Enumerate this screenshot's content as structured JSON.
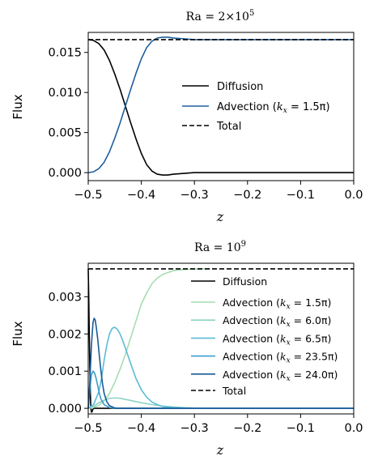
{
  "chart_data": [
    {
      "type": "line",
      "title": "Ra = 2×10⁵",
      "xlabel": "z",
      "ylabel": "Flux",
      "xlim": [
        -0.5,
        0.0
      ],
      "ylim": [
        -0.001,
        0.0175
      ],
      "xticks": [
        "−0.5",
        "−0.4",
        "−0.3",
        "−0.2",
        "−0.1",
        "0.0"
      ],
      "yticks": [
        "0.000",
        "0.005",
        "0.010",
        "0.015"
      ],
      "legend_position": "center-right",
      "series": [
        {
          "name": "Diffusion",
          "color": "#000000",
          "dash": "solid",
          "x": [
            -0.5,
            -0.49,
            -0.48,
            -0.47,
            -0.46,
            -0.45,
            -0.44,
            -0.43,
            -0.42,
            -0.41,
            -0.4,
            -0.39,
            -0.38,
            -0.37,
            -0.36,
            -0.35,
            -0.34,
            -0.32,
            -0.3,
            -0.25,
            -0.2,
            -0.1,
            0.0
          ],
          "y": [
            0.0166,
            0.0165,
            0.0161,
            0.0153,
            0.014,
            0.0123,
            0.0104,
            0.0083,
            0.0062,
            0.0042,
            0.0024,
            0.001,
            0.0002,
            -0.0002,
            -0.0003,
            -0.0003,
            -0.0002,
            -0.0001,
            0.0,
            0.0,
            0.0,
            0.0,
            0.0
          ]
        },
        {
          "name": "Advection (k_x = 1.5π)",
          "color": "#1f5f9e",
          "dash": "solid",
          "x": [
            -0.5,
            -0.49,
            -0.48,
            -0.47,
            -0.46,
            -0.45,
            -0.44,
            -0.43,
            -0.42,
            -0.41,
            -0.4,
            -0.39,
            -0.38,
            -0.37,
            -0.36,
            -0.35,
            -0.34,
            -0.32,
            -0.3,
            -0.25,
            -0.2,
            -0.1,
            0.0
          ],
          "y": [
            0.0,
            0.0001,
            0.0005,
            0.0013,
            0.0026,
            0.0043,
            0.0062,
            0.0083,
            0.0104,
            0.0124,
            0.0142,
            0.0156,
            0.0164,
            0.0168,
            0.0169,
            0.0169,
            0.0168,
            0.0167,
            0.0166,
            0.0166,
            0.0166,
            0.0166,
            0.0166
          ]
        },
        {
          "name": "Total",
          "color": "#000000",
          "dash": "dashed",
          "x": [
            -0.5,
            0.0
          ],
          "y": [
            0.0166,
            0.0166
          ]
        }
      ],
      "legend_labels": {
        "diffusion": "Diffusion",
        "advection_prefix": "Advection (",
        "k_symbol": "k",
        "k_sub": "x",
        "advection_suffix": " = 1.5π)",
        "total": "Total"
      }
    },
    {
      "type": "line",
      "title": "Ra = 10⁹",
      "xlabel": "z",
      "ylabel": "Flux",
      "xlim": [
        -0.5,
        0.0
      ],
      "ylim": [
        -0.00015,
        0.0039
      ],
      "xticks": [
        "−0.5",
        "−0.4",
        "−0.3",
        "−0.2",
        "−0.1",
        "0.0"
      ],
      "yticks": [
        "0.000",
        "0.001",
        "0.002",
        "0.003"
      ],
      "legend_position": "upper-right",
      "series": [
        {
          "name": "Diffusion",
          "color": "#000000",
          "dash": "solid",
          "x": [
            -0.5,
            -0.499,
            -0.498,
            -0.497,
            -0.496,
            -0.495,
            -0.494,
            -0.493,
            -0.492,
            -0.49,
            -0.488,
            -0.485,
            -0.48,
            -0.47,
            -0.45,
            -0.4,
            -0.3,
            0.0
          ],
          "y": [
            0.00375,
            0.003,
            0.002,
            0.0011,
            0.0004,
            0.0,
            -0.0001,
            -0.0001,
            -5e-05,
            0.0,
            0.0,
            0.0,
            0.0,
            0.0,
            0.0,
            0.0,
            0.0,
            0.0
          ]
        },
        {
          "name": "Advection (k_x = 1.5π)",
          "color": "#a6dcb3",
          "dash": "solid",
          "x": [
            -0.5,
            -0.49,
            -0.48,
            -0.47,
            -0.46,
            -0.45,
            -0.44,
            -0.43,
            -0.42,
            -0.41,
            -0.4,
            -0.39,
            -0.38,
            -0.37,
            -0.36,
            -0.35,
            -0.34,
            -0.33,
            -0.32,
            -0.31,
            -0.3,
            -0.29,
            -0.28,
            -0.27
          ],
          "y": [
            0.0,
            2e-05,
            8e-05,
            0.0002,
            0.0004,
            0.0007,
            0.00105,
            0.00145,
            0.0019,
            0.00235,
            0.0028,
            0.0031,
            0.00335,
            0.0035,
            0.0036,
            0.00365,
            0.0037,
            0.00372,
            0.00373,
            0.00374,
            0.00374,
            0.00375,
            0.00375,
            0.00375
          ]
        },
        {
          "name": "Advection (k_x = 6.0π)",
          "color": "#8ed3c4",
          "dash": "solid",
          "x": [
            -0.5,
            -0.49,
            -0.48,
            -0.47,
            -0.46,
            -0.45,
            -0.44,
            -0.43,
            -0.42,
            -0.4,
            -0.38,
            -0.36,
            -0.34,
            -0.32,
            -0.3,
            -0.25,
            -0.2,
            -0.1,
            0.0
          ],
          "y": [
            0.0,
            5e-05,
            0.00015,
            0.00022,
            0.00027,
            0.00028,
            0.00027,
            0.00024,
            0.00021,
            0.00015,
            0.0001,
            6e-05,
            4e-05,
            2e-05,
            1e-05,
            0.0,
            0.0,
            0.0,
            0.0
          ]
        },
        {
          "name": "Advection (k_x = 6.5π)",
          "color": "#5bbcd6",
          "dash": "solid",
          "x": [
            -0.5,
            -0.49,
            -0.48,
            -0.475,
            -0.47,
            -0.465,
            -0.46,
            -0.455,
            -0.45,
            -0.445,
            -0.44,
            -0.435,
            -0.43,
            -0.42,
            -0.41,
            -0.4,
            -0.39,
            -0.38,
            -0.37,
            -0.36,
            -0.34,
            -0.32,
            -0.3,
            -0.25,
            -0.2,
            -0.1,
            0.0
          ],
          "y": [
            0.0,
            0.0001,
            0.00045,
            0.0008,
            0.0013,
            0.0017,
            0.002,
            0.00215,
            0.00218,
            0.00212,
            0.002,
            0.00182,
            0.00162,
            0.0012,
            0.0008,
            0.0005,
            0.0003,
            0.00017,
            0.0001,
            5e-05,
            2e-05,
            1e-05,
            0.0,
            0.0,
            0.0,
            0.0,
            0.0
          ]
        },
        {
          "name": "Advection (k_x = 23.5π)",
          "color": "#3d9ccc",
          "dash": "solid",
          "x": [
            -0.5,
            -0.497,
            -0.494,
            -0.491,
            -0.488,
            -0.485,
            -0.482,
            -0.479,
            -0.476,
            -0.47,
            -0.46,
            -0.45,
            -0.43,
            -0.4,
            -0.3,
            0.0
          ],
          "y": [
            0.0,
            0.0005,
            0.0009,
            0.001,
            0.00095,
            0.0008,
            0.0006,
            0.0004,
            0.00025,
            0.0001,
            2e-05,
            0.0,
            0.0,
            0.0,
            0.0,
            0.0
          ]
        },
        {
          "name": "Advection (k_x = 24.0π)",
          "color": "#1a5a9a",
          "dash": "solid",
          "x": [
            -0.5,
            -0.497,
            -0.494,
            -0.491,
            -0.489,
            -0.487,
            -0.485,
            -0.482,
            -0.479,
            -0.476,
            -0.473,
            -0.47,
            -0.465,
            -0.46,
            -0.45,
            -0.44,
            -0.43,
            -0.4,
            -0.3,
            0.0
          ],
          "y": [
            0.0,
            0.0007,
            0.0017,
            0.0023,
            0.00242,
            0.00238,
            0.0022,
            0.00185,
            0.0014,
            0.001,
            0.00065,
            0.0004,
            0.00018,
            7e-05,
            1e-05,
            0.0,
            0.0,
            0.0,
            0.0,
            0.0
          ]
        },
        {
          "name": "Total",
          "color": "#000000",
          "dash": "dashed",
          "x": [
            -0.5,
            0.0
          ],
          "y": [
            0.00375,
            0.00375
          ]
        }
      ],
      "legend_labels": {
        "diffusion": "Diffusion",
        "advection_prefix": "Advection (",
        "k_symbol": "k",
        "k_sub": "x",
        "suffixes": [
          " = 1.5π)",
          " = 6.0π)",
          " = 6.5π)",
          " = 23.5π)",
          " = 24.0π)"
        ],
        "total": "Total"
      }
    }
  ]
}
